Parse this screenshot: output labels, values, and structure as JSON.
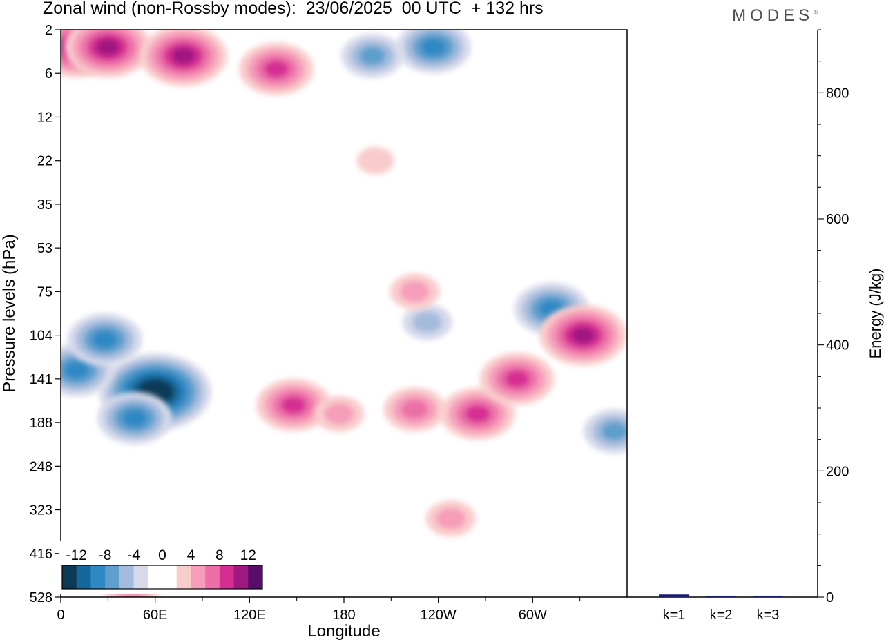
{
  "header": {
    "title": "Zonal wind (non-Rossby modes):  23/06/2025  00 UTC  + 132 hrs",
    "brand": "MODES",
    "brand_mark": "©"
  },
  "chart_data": [
    {
      "type": "heatmap",
      "title": "Zonal wind (non-Rossby modes):  23/06/2025  00 UTC  + 132 hrs",
      "xlabel": "Longitude",
      "ylabel": "Pressure levels (hPa)",
      "x_ticks": [
        "0",
        "60E",
        "120E",
        "180",
        "120W",
        "60W"
      ],
      "x_tick_degrees": [
        0,
        60,
        120,
        180,
        240,
        300
      ],
      "xlim": [
        0,
        360
      ],
      "y_ticks": [
        "2",
        "6",
        "12",
        "22",
        "35",
        "53",
        "75",
        "104",
        "141",
        "188",
        "248",
        "323",
        "416",
        "528"
      ],
      "colorbar": {
        "labels": [
          "-12",
          "-8",
          "-4",
          "0",
          "4",
          "8",
          "12"
        ],
        "levels": [
          -14,
          -12,
          -10,
          -8,
          -6,
          -4,
          -2,
          0,
          2,
          4,
          6,
          8,
          10,
          12,
          14
        ],
        "colors": [
          "#0b3a56",
          "#16679a",
          "#2e88c3",
          "#5f9fcd",
          "#a4bcdc",
          "#d6d9ea",
          "#ffffff",
          "#ffffff",
          "#f9cccc",
          "#f69eb9",
          "#ec6fa7",
          "#d62d93",
          "#a01980",
          "#5a0c6a"
        ]
      },
      "features": [
        {
          "lon": 60,
          "level_index": 8.3,
          "value": -14
        },
        {
          "lon": 47,
          "level_index": 8.9,
          "value": -8
        },
        {
          "lon": 10,
          "level_index": 7.8,
          "value": -8
        },
        {
          "lon": 28,
          "level_index": 7.1,
          "value": -8
        },
        {
          "lon": 237,
          "level_index": 0.4,
          "value": -8
        },
        {
          "lon": 198,
          "level_index": 0.6,
          "value": -6
        },
        {
          "lon": 312,
          "level_index": 6.4,
          "value": -8
        },
        {
          "lon": 352,
          "level_index": 9.2,
          "value": -6
        },
        {
          "lon": 233,
          "level_index": 6.7,
          "value": -4
        },
        {
          "lon": 10,
          "level_index": 0.4,
          "value": 10
        },
        {
          "lon": 30,
          "level_index": 0.4,
          "value": 10
        },
        {
          "lon": 78,
          "level_index": 0.6,
          "value": 10
        },
        {
          "lon": 137,
          "level_index": 0.9,
          "value": 8
        },
        {
          "lon": 148,
          "level_index": 8.6,
          "value": 8
        },
        {
          "lon": 177,
          "level_index": 8.8,
          "value": 4
        },
        {
          "lon": 225,
          "level_index": 8.7,
          "value": 6
        },
        {
          "lon": 265,
          "level_index": 8.8,
          "value": 8
        },
        {
          "lon": 290,
          "level_index": 8.0,
          "value": 8
        },
        {
          "lon": 332,
          "level_index": 7.0,
          "value": 10
        },
        {
          "lon": 225,
          "level_index": 6.0,
          "value": 4
        },
        {
          "lon": 200,
          "level_index": 3.0,
          "value": 2
        },
        {
          "lon": 45,
          "level_index": 12.7,
          "value": 6
        },
        {
          "lon": 248,
          "level_index": 11.2,
          "value": 4
        }
      ]
    },
    {
      "type": "bar",
      "ylabel": "Energy (J/kg)",
      "categories": [
        "k=1",
        "k=2",
        "k=3"
      ],
      "values": [
        3,
        1,
        1
      ],
      "ylim": [
        0,
        900
      ],
      "y_ticks": [
        0,
        200,
        400,
        600,
        800
      ],
      "bar_color": "#1a1a6e"
    }
  ]
}
